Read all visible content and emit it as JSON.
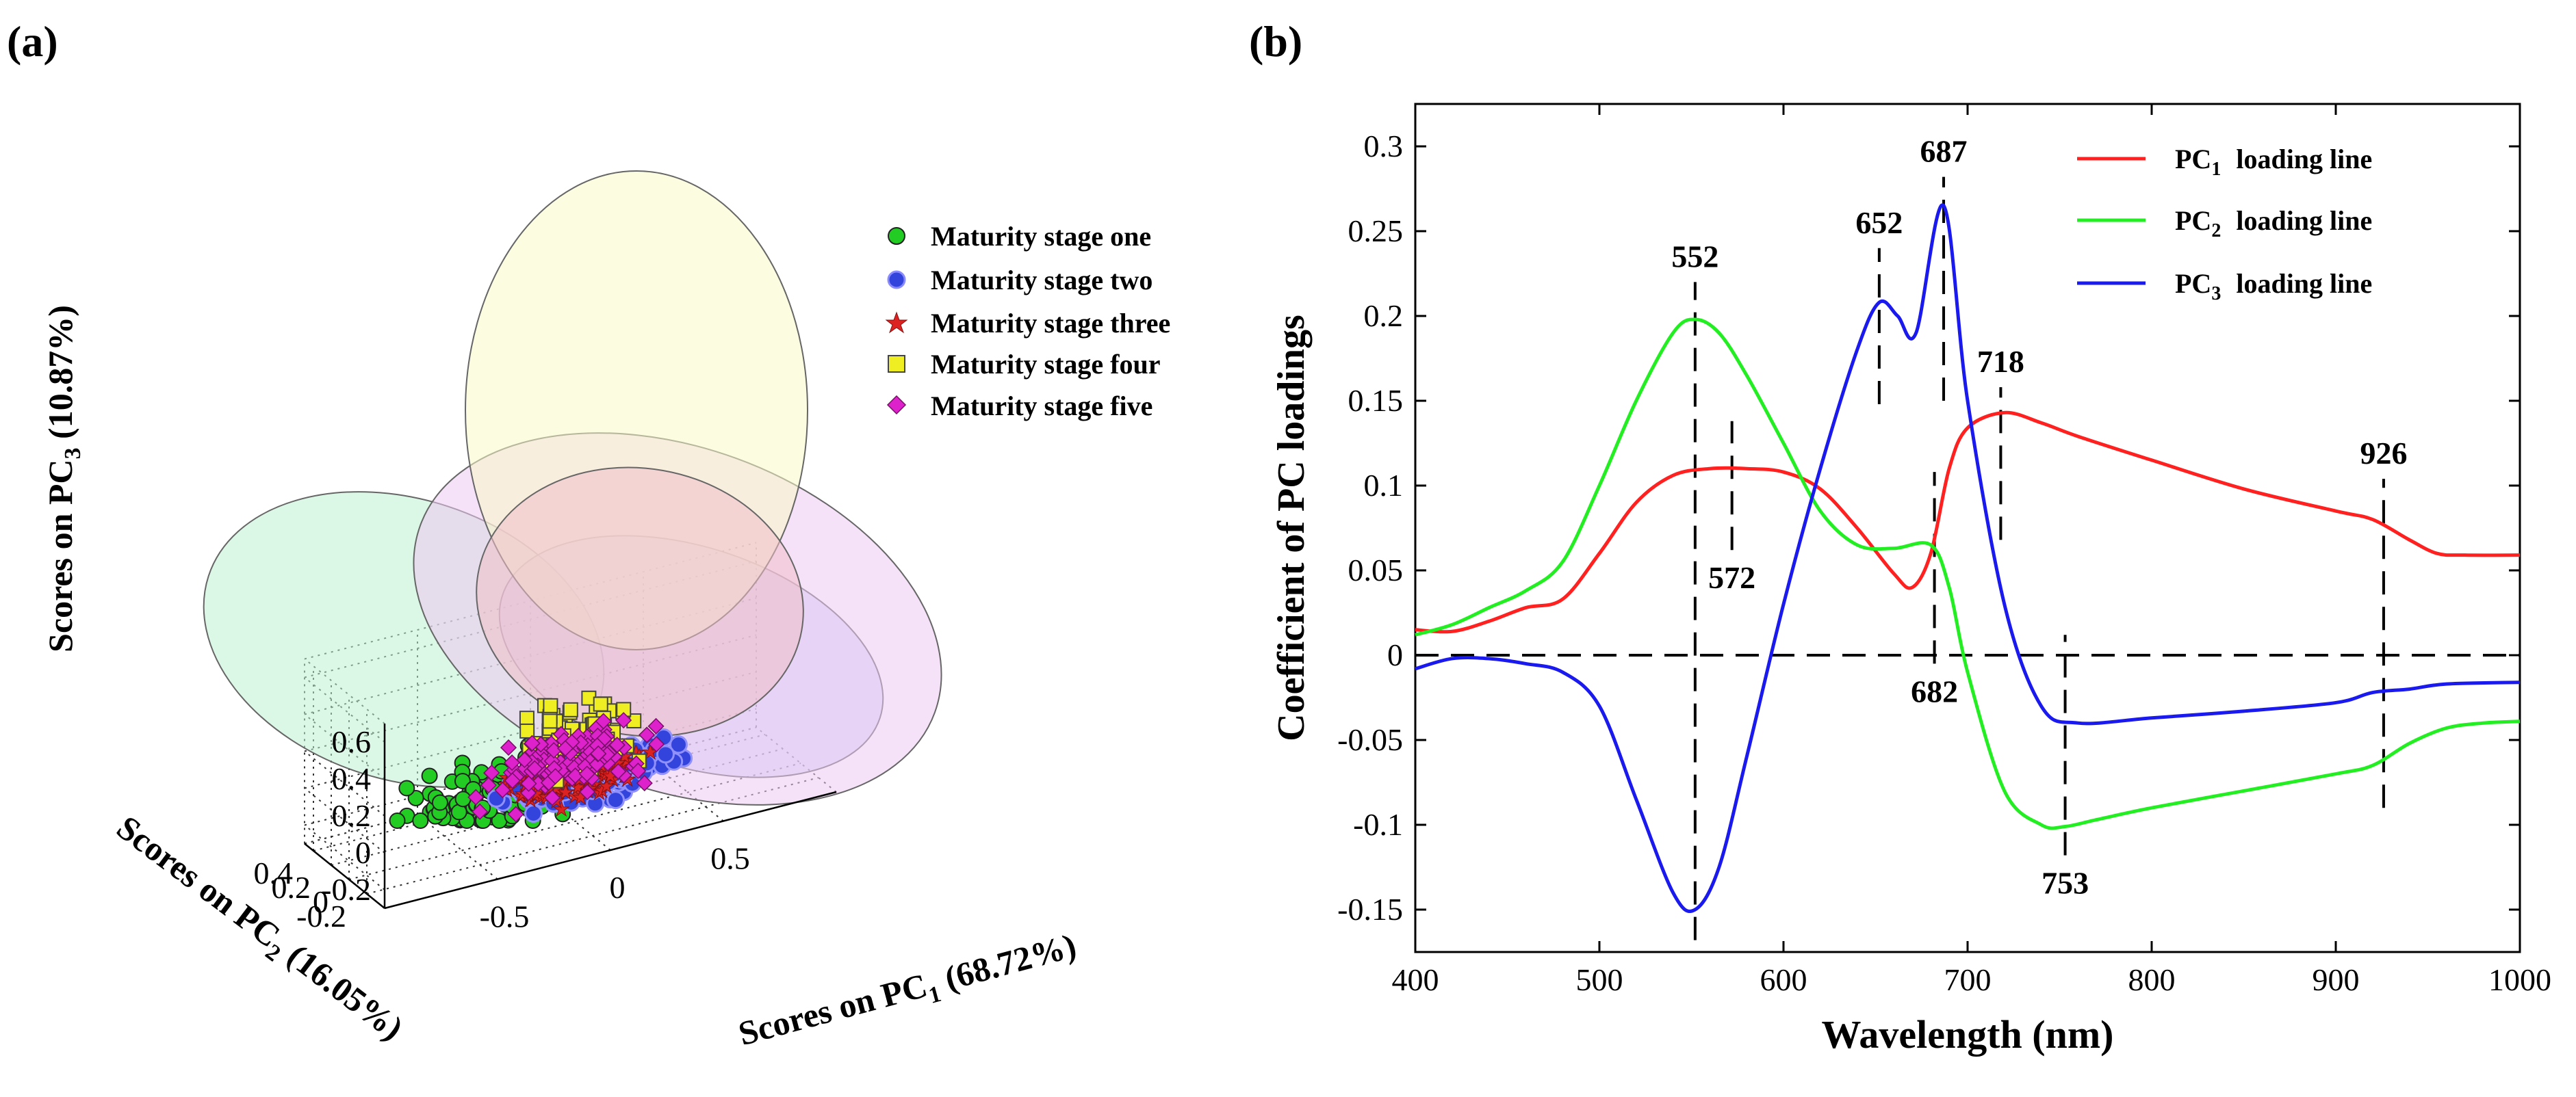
{
  "panel_labels": {
    "a": "(a)",
    "b": "(b)"
  },
  "chart_data": [
    {
      "type": "scatter",
      "panel": "(a)",
      "three_d": true,
      "xlabel": {
        "prefix": "Scores on PC",
        "sub": "1",
        "suffix": " (68.72%)"
      },
      "ylabel": {
        "prefix": "Scores on PC",
        "sub": "2",
        "suffix": " (16.05%)"
      },
      "zlabel": {
        "prefix": "Scores on PC",
        "sub": "3",
        "suffix": " (10.87%)"
      },
      "x_ticks": [
        "-0.5",
        "0",
        "0.5"
      ],
      "y_ticks": [
        "-0.2",
        "0",
        "0.2",
        "0.4"
      ],
      "z_ticks": [
        "-0.2",
        "0",
        "0.2",
        "0.4",
        "0.6"
      ],
      "grid": true,
      "legend_position": "top-right",
      "series": [
        {
          "name": "Maturity stage one",
          "marker": "circle",
          "color": "#22cc22",
          "ellipse_color": "#bdf0cf",
          "center": [
            -0.3,
            0.05,
            -0.08
          ],
          "count": 110
        },
        {
          "name": "Maturity stage two",
          "marker": "circle",
          "color": "#3344dd",
          "ellipse_color": "#c7c8f3",
          "center": [
            0.05,
            -0.05,
            -0.03
          ],
          "count": 230
        },
        {
          "name": "Maturity stage three",
          "marker": "star",
          "color": "#dd2222",
          "ellipse_color": "#f1c0c9",
          "center": [
            0.0,
            0.0,
            -0.05
          ],
          "count": 200
        },
        {
          "name": "Maturity stage four",
          "marker": "square",
          "color": "#eeee22",
          "ellipse_color": "#fafac8",
          "center": [
            0.05,
            0.05,
            0.12
          ],
          "count": 90
        },
        {
          "name": "Maturity stage five",
          "marker": "diamond",
          "color": "#dd22cc",
          "ellipse_color": "#ecc8f2",
          "center": [
            0.0,
            0.05,
            0.02
          ],
          "count": 130
        }
      ]
    },
    {
      "type": "line",
      "panel": "(b)",
      "xlabel": "Wavelength (nm)",
      "ylabel": "Coefficient of PC loadings",
      "xlim": [
        400,
        1000
      ],
      "ylim": [
        -0.175,
        0.325
      ],
      "x_ticks": [
        400,
        500,
        600,
        700,
        800,
        900,
        1000
      ],
      "y_ticks": [
        -0.15,
        -0.1,
        -0.05,
        0,
        0.05,
        0.1,
        0.15,
        0.2,
        0.25,
        0.3
      ],
      "y_tick_labels": [
        "-0.15",
        "-0.1",
        "-0.05",
        "0",
        "0.05",
        "0.1",
        "0.15",
        "0.2",
        "0.25",
        "0.3"
      ],
      "legend_position": "top-right",
      "series": [
        {
          "name_prefix": "PC",
          "name_sub": "1",
          "name_suffix": "loading line",
          "color": "#ff2020",
          "x": [
            400,
            420,
            440,
            460,
            480,
            500,
            520,
            540,
            560,
            580,
            600,
            620,
            640,
            660,
            670,
            680,
            690,
            700,
            720,
            740,
            760,
            800,
            850,
            900,
            920,
            940,
            955,
            970,
            1000
          ],
          "y": [
            0.015,
            0.014,
            0.02,
            0.028,
            0.033,
            0.06,
            0.09,
            0.106,
            0.11,
            0.11,
            0.108,
            0.098,
            0.075,
            0.048,
            0.04,
            0.06,
            0.11,
            0.134,
            0.143,
            0.137,
            0.129,
            0.115,
            0.098,
            0.085,
            0.08,
            0.068,
            0.06,
            0.059,
            0.059
          ]
        },
        {
          "name_prefix": "PC",
          "name_sub": "2",
          "name_suffix": "loading line",
          "color": "#22ee22",
          "x": [
            400,
            420,
            440,
            460,
            480,
            500,
            520,
            540,
            552,
            565,
            580,
            600,
            620,
            640,
            660,
            680,
            690,
            700,
            720,
            740,
            753,
            770,
            800,
            850,
            900,
            920,
            940,
            960,
            980,
            1000
          ],
          "y": [
            0.012,
            0.018,
            0.028,
            0.038,
            0.055,
            0.1,
            0.15,
            0.19,
            0.198,
            0.19,
            0.165,
            0.125,
            0.085,
            0.065,
            0.063,
            0.065,
            0.04,
            -0.01,
            -0.08,
            -0.1,
            -0.101,
            -0.097,
            -0.09,
            -0.08,
            -0.07,
            -0.065,
            -0.052,
            -0.043,
            -0.04,
            -0.039
          ]
        },
        {
          "name_prefix": "PC",
          "name_sub": "3",
          "name_suffix": "loading line",
          "color": "#1a1aee",
          "x": [
            400,
            420,
            440,
            460,
            480,
            500,
            520,
            540,
            552,
            565,
            580,
            600,
            620,
            640,
            652,
            662,
            672,
            687,
            700,
            720,
            740,
            760,
            800,
            850,
            900,
            920,
            940,
            960,
            1000
          ],
          "y": [
            -0.008,
            -0.002,
            -0.002,
            -0.005,
            -0.01,
            -0.03,
            -0.085,
            -0.14,
            -0.15,
            -0.125,
            -0.06,
            0.03,
            0.11,
            0.18,
            0.208,
            0.2,
            0.19,
            0.265,
            0.15,
            0.03,
            -0.03,
            -0.04,
            -0.037,
            -0.033,
            -0.028,
            -0.022,
            -0.02,
            -0.017,
            -0.016
          ]
        }
      ],
      "reference_lines": [
        {
          "kind": "horizontal",
          "y": 0
        },
        {
          "kind": "vertical",
          "x": 552,
          "from": -0.168,
          "to": 0.22,
          "label": "552",
          "label_pos": "top"
        },
        {
          "kind": "vertical",
          "x": 572,
          "from": 0.062,
          "to": 0.138,
          "label": "572",
          "label_pos": "bottom"
        },
        {
          "kind": "vertical",
          "x": 652,
          "from": 0.148,
          "to": 0.24,
          "label": "652",
          "label_pos": "top"
        },
        {
          "kind": "vertical",
          "x": 682,
          "from": -0.005,
          "to": 0.108,
          "label": "682",
          "label_pos": "bottom"
        },
        {
          "kind": "vertical",
          "x": 687,
          "from": 0.15,
          "to": 0.282,
          "label": "687",
          "label_pos": "top"
        },
        {
          "kind": "vertical",
          "x": 718,
          "from": 0.068,
          "to": 0.158,
          "label": "718",
          "label_pos": "top"
        },
        {
          "kind": "vertical",
          "x": 753,
          "from": -0.118,
          "to": 0.012,
          "label": "753",
          "label_pos": "bottom"
        },
        {
          "kind": "vertical",
          "x": 926,
          "from": -0.09,
          "to": 0.104,
          "label": "926",
          "label_pos": "top"
        }
      ]
    }
  ]
}
